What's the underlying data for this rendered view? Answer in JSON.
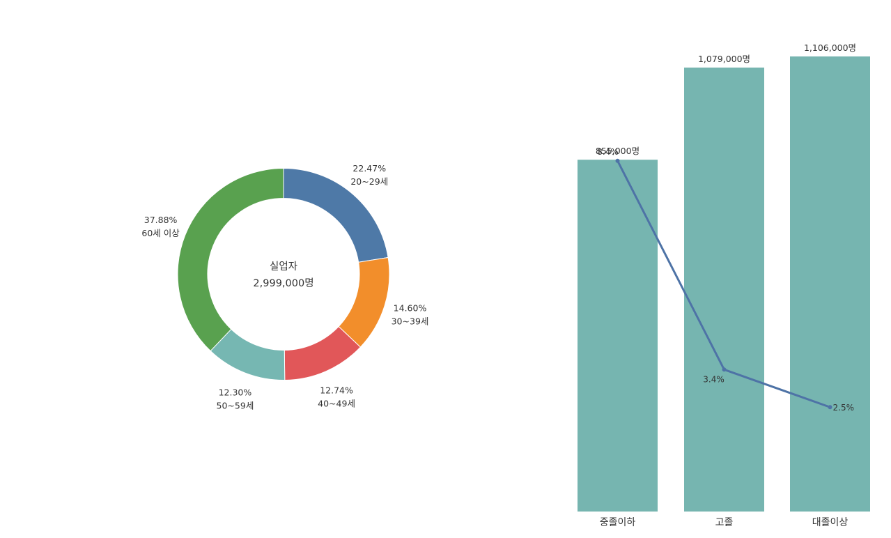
{
  "chart_data": [
    {
      "type": "pie",
      "title": "",
      "center_label": {
        "title": "실업자",
        "value": "2,999,000명"
      },
      "slices": [
        {
          "label": "20~29세",
          "percent_label": "22.47%",
          "value": 22.47,
          "color": "#4e79a7"
        },
        {
          "label": "30~39세",
          "percent_label": "14.60%",
          "value": 14.6,
          "color": "#f28e2b"
        },
        {
          "label": "40~49세",
          "percent_label": "12.74%",
          "value": 12.74,
          "color": "#e15759"
        },
        {
          "label": "50~59세",
          "percent_label": "12.30%",
          "value": 12.3,
          "color": "#76b7b2"
        },
        {
          "label": "60세 이상",
          "percent_label": "37.88%",
          "value": 37.88,
          "color": "#59a14f"
        }
      ]
    },
    {
      "type": "bar",
      "title": "",
      "categories": [
        "중졸이하",
        "고졸",
        "대졸이상"
      ],
      "series": [
        {
          "type": "bar",
          "values": [
            855000,
            1079000,
            1106000
          ],
          "value_labels": [
            "855,000명",
            "1,079,000명",
            "1,106,000명"
          ],
          "color": "#76b5b0"
        },
        {
          "type": "line",
          "values": [
            8.4,
            3.4,
            2.5
          ],
          "value_labels": [
            "8.4%",
            "3.4%",
            "2.5%"
          ],
          "color": "#4e73a6"
        }
      ],
      "ylim": [
        0,
        1106000
      ],
      "ylim_line": [
        0,
        10.9
      ],
      "grid": false
    }
  ]
}
